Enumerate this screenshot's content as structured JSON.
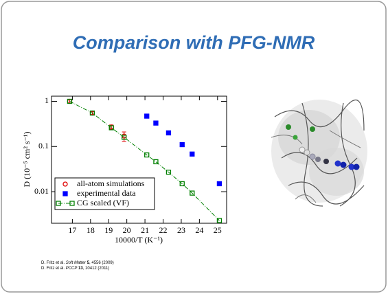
{
  "slide_title": "Comparison with PFG-NMR",
  "chart_data": {
    "type": "scatter",
    "xlabel": "10000/T (K⁻¹)",
    "ylabel": "D (10⁻⁵ cm² s⁻¹)",
    "xlim": [
      15.85,
      25.5
    ],
    "xticks": [
      17,
      18,
      19,
      20,
      21,
      22,
      23,
      24,
      25
    ],
    "ylim": [
      0.002,
      1.3
    ],
    "yticks": [
      0.01,
      0.1,
      1
    ],
    "yscale": "log",
    "legend": "lower left",
    "series": [
      {
        "name": "all-atom simulations",
        "color": "#e00000",
        "marker": "circle",
        "filled": false,
        "line": false,
        "x": [
          16.85,
          18.1,
          19.15,
          19.85
        ],
        "values": [
          1.0,
          0.55,
          0.27,
          0.17
        ],
        "errors": [
          0.1,
          0.04,
          0.03,
          0.04
        ]
      },
      {
        "name": "experimental data",
        "color": "#0000ff",
        "marker": "square",
        "filled": true,
        "line": false,
        "x": [
          21.1,
          21.6,
          22.3,
          23.05,
          23.6,
          25.1
        ],
        "values": [
          0.47,
          0.33,
          0.2,
          0.11,
          0.068,
          0.015
        ]
      },
      {
        "name": "CG scaled (VF)",
        "color": "#008000",
        "marker": "square",
        "filled": false,
        "line": true,
        "x": [
          16.85,
          18.1,
          19.15,
          19.85,
          21.1,
          21.6,
          22.3,
          23.05,
          23.6,
          25.1
        ],
        "values": [
          1.0,
          0.55,
          0.26,
          0.16,
          0.065,
          0.046,
          0.027,
          0.015,
          0.0093,
          0.0023
        ]
      }
    ]
  },
  "references": [
    {
      "authors": "D. Fritz et al.",
      "journal": "Soft Matter",
      "volume": "5",
      "rest": ", 4556 (2009)"
    },
    {
      "authors": "D. Fritz et al.",
      "journal": "PCCP",
      "volume": "13",
      "rest": ", 10412 (2011)"
    }
  ]
}
